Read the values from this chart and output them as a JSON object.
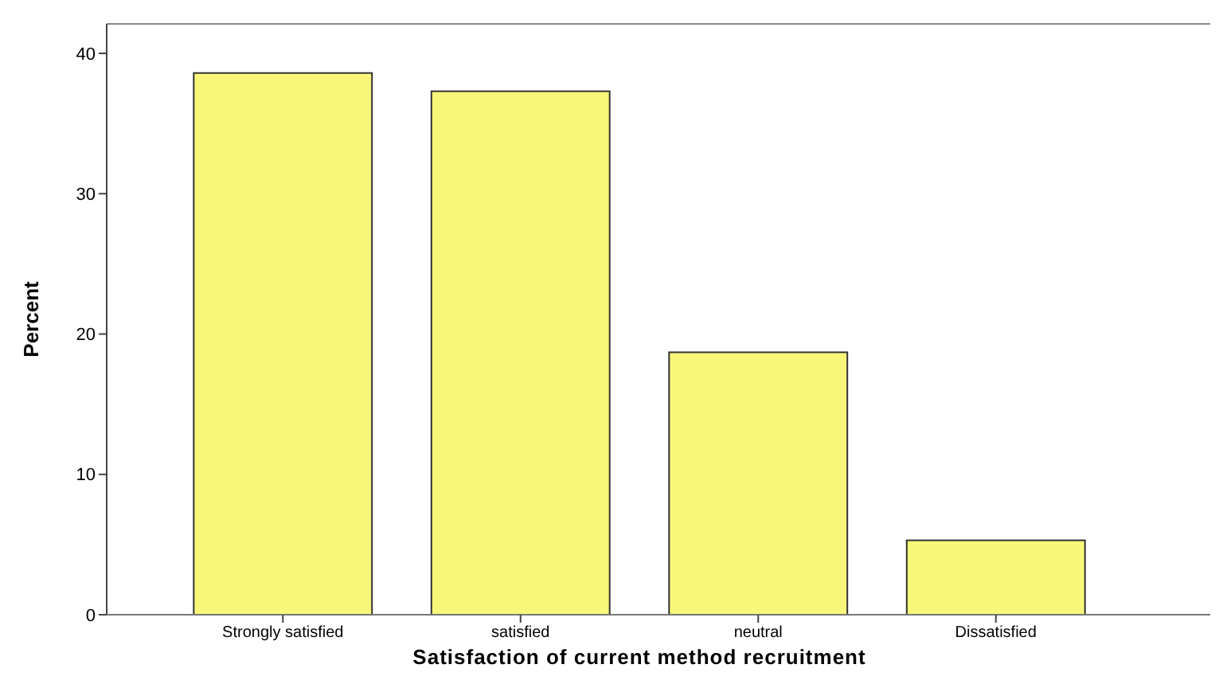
{
  "chart_data": {
    "type": "bar",
    "xlabel": "Satisfaction of current method recruitment",
    "ylabel": "Percent",
    "categories": [
      "Strongly satisfied",
      "satisfied",
      "neutral",
      "Dissatisfied"
    ],
    "values": [
      38.6,
      37.3,
      18.7,
      5.3
    ],
    "color": "#f9f77a",
    "ylim": [
      0,
      42.1
    ],
    "yticks": [
      0,
      10,
      20,
      30,
      40
    ],
    "grid": false
  }
}
